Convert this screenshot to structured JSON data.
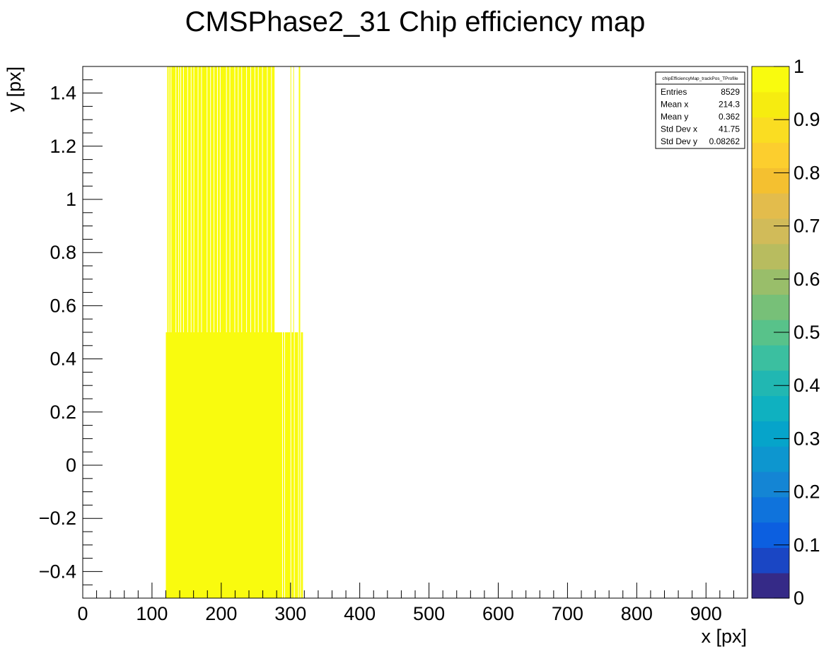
{
  "chart_data": {
    "type": "heatmap",
    "title": "CMSPhase2_31 Chip efficiency map",
    "xlabel": "x [px]",
    "ylabel": "y [px]",
    "xlim": [
      0,
      960
    ],
    "ylim": [
      -0.5,
      1.5
    ],
    "x_ticks": [
      0,
      100,
      200,
      300,
      400,
      500,
      600,
      700,
      800,
      900
    ],
    "y_ticks": [
      -0.4,
      -0.2,
      0,
      0.2,
      0.4,
      0.6,
      0.8,
      1,
      1.2,
      1.4
    ],
    "y_tick_labels": [
      "−0.4",
      "−0.2",
      "0",
      "0.2",
      "0.4",
      "0.6",
      "0.8",
      "1",
      "1.2",
      "1.4"
    ],
    "bin_width_x": 1,
    "rows": [
      {
        "y_range": [
          -0.5,
          0.5
        ],
        "x_range": [
          120,
          318
        ],
        "value": 1.0,
        "gaps_x": [
          288,
          291,
          300,
          305,
          311,
          314
        ]
      },
      {
        "y_range": [
          0.5,
          1.5
        ],
        "x_range": [
          122,
          277
        ],
        "value": 1.0,
        "gaps_x": [
          124,
          127,
          134,
          138,
          141,
          145,
          151,
          156,
          160,
          166,
          171,
          179,
          184,
          189,
          194,
          198,
          207,
          212,
          219,
          224,
          229,
          236,
          242,
          248,
          253,
          259,
          266,
          272
        ],
        "extra_columns_x": [
          300,
          304,
          312,
          313
        ]
      }
    ],
    "colorbar": {
      "min": 0,
      "max": 1,
      "ticks": [
        0,
        0.1,
        0.2,
        0.3,
        0.4,
        0.5,
        0.6,
        0.7,
        0.8,
        0.9,
        1
      ],
      "tick_labels": [
        "0",
        "0.1",
        "0.2",
        "0.3",
        "0.4",
        "0.5",
        "0.6",
        "0.7",
        "0.8",
        "0.9",
        "1"
      ],
      "colors": [
        "#352a87",
        "#1a46c4",
        "#0c5fe0",
        "#0f73dc",
        "#1485d4",
        "#0d96cf",
        "#06a4ca",
        "#0fb1c0",
        "#21b7b2",
        "#3bbfa0",
        "#58c28a",
        "#77c078",
        "#99be6a",
        "#b8bc5f",
        "#d1bb59",
        "#e3bc4c",
        "#f4c030",
        "#fcce2e",
        "#fadd22",
        "#f6ec10",
        "#f9fb0e"
      ]
    },
    "stats_box": {
      "title": "chipEfficiencyMap_trackPos_TProfile",
      "rows": [
        {
          "label": "Entries",
          "value": "8529"
        },
        {
          "label": "Mean x",
          "value": "214.3"
        },
        {
          "label": "Mean y",
          "value": "0.362"
        },
        {
          "label": "Std Dev x",
          "value": "41.75"
        },
        {
          "label": "Std Dev y",
          "value": "0.08262"
        }
      ]
    },
    "fill_color": "#f9fb0e",
    "grid": false,
    "legend": "none"
  }
}
